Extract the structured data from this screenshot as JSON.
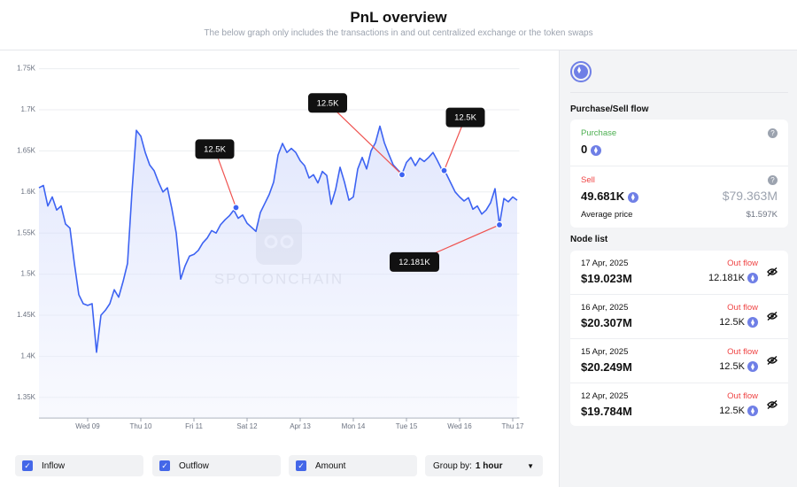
{
  "header": {
    "title": "PnL overview",
    "subtitle": "The below graph only includes the transactions in and out centralized exchange or the token swaps"
  },
  "chart_data": {
    "type": "line",
    "color": "#3d63f2",
    "x": [
      -22,
      -20,
      -18,
      -16,
      -14,
      -12,
      -10,
      -8,
      -6,
      -4,
      -2,
      0,
      2,
      4,
      6,
      8,
      10,
      12,
      14,
      16,
      18,
      20,
      22,
      24,
      26,
      28,
      30,
      32,
      34,
      36,
      38,
      40,
      42,
      44,
      46,
      48,
      50,
      52,
      54,
      56,
      58,
      60,
      62,
      64,
      66,
      68,
      70,
      72,
      74,
      76,
      78,
      80,
      82,
      84,
      86,
      88,
      90,
      92,
      94,
      96,
      98,
      100,
      102,
      104,
      106,
      108,
      110,
      112,
      114,
      116,
      118,
      120,
      122,
      124,
      126,
      128,
      130,
      132,
      134,
      136,
      138,
      140,
      142,
      144,
      146,
      148,
      150,
      152,
      154,
      156,
      158,
      160,
      162,
      164,
      166,
      168,
      170,
      172,
      174,
      176,
      178,
      180,
      182,
      184,
      186,
      188,
      190,
      192,
      194
    ],
    "values": [
      1605,
      1608,
      1583,
      1594,
      1578,
      1583,
      1561,
      1556,
      1513,
      1475,
      1464,
      1462,
      1464,
      1405,
      1450,
      1456,
      1464,
      1481,
      1472,
      1491,
      1513,
      1600,
      1675,
      1668,
      1648,
      1633,
      1626,
      1612,
      1600,
      1605,
      1580,
      1550,
      1494,
      1510,
      1522,
      1524,
      1529,
      1538,
      1544,
      1553,
      1550,
      1560,
      1566,
      1571,
      1578,
      1568,
      1572,
      1562,
      1557,
      1552,
      1575,
      1586,
      1597,
      1612,
      1645,
      1659,
      1648,
      1653,
      1648,
      1638,
      1632,
      1617,
      1621,
      1611,
      1625,
      1620,
      1585,
      1603,
      1630,
      1612,
      1590,
      1594,
      1628,
      1642,
      1628,
      1650,
      1660,
      1680,
      1660,
      1646,
      1633,
      1627,
      1622,
      1636,
      1642,
      1632,
      1641,
      1637,
      1642,
      1648,
      1638,
      1627,
      1622,
      1611,
      1600,
      1594,
      1589,
      1593,
      1579,
      1583,
      1573,
      1578,
      1587,
      1604,
      1560,
      1592,
      1588,
      1594,
      1590
    ],
    "xlim": [
      -22,
      195
    ],
    "ylim": [
      1325,
      1760
    ],
    "xticks": [
      {
        "value": 0,
        "label": "Wed 09"
      },
      {
        "value": 24,
        "label": "Thu 10"
      },
      {
        "value": 48,
        "label": "Fri 11"
      },
      {
        "value": 72,
        "label": "Sat 12"
      },
      {
        "value": 96,
        "label": "Apr 13"
      },
      {
        "value": 120,
        "label": "Mon 14"
      },
      {
        "value": 144,
        "label": "Tue 15"
      },
      {
        "value": 168,
        "label": "Wed 16"
      },
      {
        "value": 192,
        "label": "Thu 17"
      }
    ],
    "yticks": [
      {
        "value": 1350,
        "label": "1.35K"
      },
      {
        "value": 1400,
        "label": "1.4K"
      },
      {
        "value": 1450,
        "label": "1.45K"
      },
      {
        "value": 1500,
        "label": "1.5K"
      },
      {
        "value": 1550,
        "label": "1.55K"
      },
      {
        "value": 1600,
        "label": "1.6K"
      },
      {
        "value": 1650,
        "label": "1.65K"
      },
      {
        "value": 1700,
        "label": "1.7K"
      },
      {
        "value": 1750,
        "label": "1.75K"
      }
    ],
    "grid": true,
    "annotations": [
      {
        "x": 67,
        "y": 1581,
        "label": "12.5K"
      },
      {
        "x": 142,
        "y": 1621,
        "label": "12.5K"
      },
      {
        "x": 161,
        "y": 1626,
        "label": "12.5K"
      },
      {
        "x": 186,
        "y": 1560,
        "label": "12.181K"
      }
    ],
    "watermark": "SPOTONCHAIN"
  },
  "filters": {
    "checkboxes": [
      "Inflow",
      "Outflow",
      "Amount"
    ],
    "group_by_label": "Group by:",
    "group_by_value": "1 hour"
  },
  "flow": {
    "title": "Purchase/Sell flow",
    "purchase": {
      "label": "Purchase",
      "amount": "0"
    },
    "sell": {
      "label": "Sell",
      "amount": "49.681K",
      "usd": "$79.363M"
    },
    "average_price": {
      "label": "Average price",
      "value": "$1.597K"
    }
  },
  "nodes": {
    "title": "Node list",
    "rows": [
      {
        "date": "17 Apr, 2025",
        "usd": "$19.023M",
        "direction": "Out flow",
        "amount": "12.181K"
      },
      {
        "date": "16 Apr, 2025",
        "usd": "$20.307M",
        "direction": "Out flow",
        "amount": "12.5K"
      },
      {
        "date": "15 Apr, 2025",
        "usd": "$20.249M",
        "direction": "Out flow",
        "amount": "12.5K"
      },
      {
        "date": "12 Apr, 2025",
        "usd": "$19.784M",
        "direction": "Out flow",
        "amount": "12.5K"
      }
    ]
  }
}
